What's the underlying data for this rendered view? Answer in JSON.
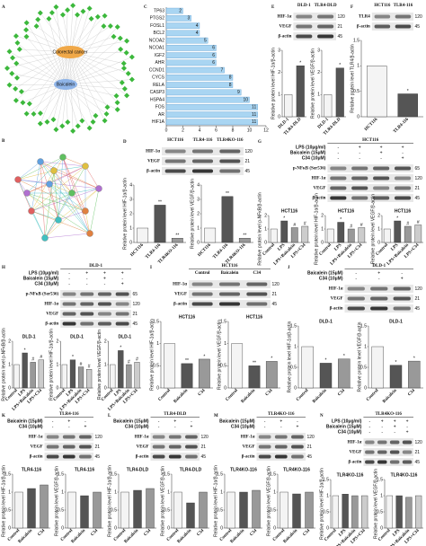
{
  "network_a": {
    "nodes": [
      "Colorectal cancer",
      "Baicalein"
    ]
  },
  "chart_data": {
    "type": "bar",
    "orientation": "horizontal",
    "letter": "C",
    "color": "#a9d5f2",
    "categories": [
      "TP63",
      "PTGS2",
      "FOSL1",
      "BCL2",
      "NCOA2",
      "NCOA1",
      "IGF2",
      "AHR",
      "CCND1",
      "CYCS",
      "RELA",
      "CASP3",
      "HSPA4",
      "FOS",
      "AR",
      "HIF1A"
    ],
    "values": [
      2,
      3,
      4,
      4,
      5,
      6,
      6,
      6,
      7,
      8,
      8,
      9,
      10,
      11,
      11,
      11
    ],
    "xlim": [
      0,
      12
    ],
    "xticks": [
      0,
      2,
      4,
      6,
      8,
      10,
      12
    ]
  },
  "panel_b": {
    "letter": "B"
  },
  "panel_a": {
    "letter": "A"
  },
  "blot_panels": [
    {
      "letter": "E",
      "lanes": [
        "DLD-1",
        "TLR4-DLD"
      ],
      "rows": [
        "HIF-1α",
        "VEGF",
        "β-actin"
      ],
      "kda": [
        "120",
        "21",
        "45"
      ],
      "categories": [
        "DLD-1",
        "TLR4-DLD"
      ],
      "ylim": [
        0,
        3
      ],
      "yticks": [
        0,
        1,
        2,
        3
      ],
      "charts": [
        {
          "ylabel": "Relative protein level HIF-1α/β-actin",
          "values": [
            1,
            2.3
          ],
          "sig": [
            null,
            "*"
          ]
        },
        {
          "ylabel": "Relative protein level VEGF/β-actin",
          "values": [
            1,
            2.2
          ],
          "sig": [
            null,
            "*"
          ]
        }
      ]
    },
    {
      "letter": "F",
      "lanes": [
        "HCT116",
        "TLR4-116"
      ],
      "rows": [
        "TLR4",
        "β-actin"
      ],
      "kda": [
        "120",
        "45"
      ],
      "categories": [
        "HCT116",
        "TLR4-116"
      ],
      "ylim": [
        0,
        1.5
      ],
      "yticks": [
        0,
        0.5,
        1,
        1.5
      ],
      "charts": [
        {
          "ylabel": "Relative protein level TLR4/β-actin",
          "values": [
            1,
            0.45
          ],
          "sig": [
            null,
            "*"
          ]
        }
      ]
    },
    {
      "letter": "D",
      "lanes": [
        "HCT116",
        "TLR4-116",
        "TLR4KO-116"
      ],
      "rows": [
        "HIF-1α",
        "VEGF",
        "β-actin"
      ],
      "kda": [
        "120",
        "21",
        "45"
      ],
      "categories": [
        "HCT116",
        "TLR4-116",
        "TLR4KO-116"
      ],
      "ylim": [
        0,
        4
      ],
      "yticks": [
        0,
        1,
        2,
        3,
        4
      ],
      "charts": [
        {
          "ylabel": "Relative protein level HIF-1α/β-actin",
          "values": [
            1,
            2.6,
            0.3
          ],
          "sig": [
            null,
            "**",
            "**"
          ]
        },
        {
          "ylabel": "Relative protein level VEGF/β-actin",
          "values": [
            1,
            3.2,
            0.3
          ],
          "sig": [
            null,
            "**",
            "**"
          ]
        }
      ]
    },
    {
      "letter": "G",
      "title": "HCT116",
      "treatments": [
        "LPS (10μg/ml)",
        "Baicalein (15μM)",
        "C34 (10μM)"
      ],
      "signs": [
        [
          "-",
          "+",
          "+",
          "+"
        ],
        [
          "-",
          "-",
          "+",
          "-"
        ],
        [
          "-",
          "-",
          "-",
          "+"
        ]
      ],
      "rows": [
        "p-NFκB (Ser536)",
        "HIF-1α",
        "VEGF",
        "β-actin"
      ],
      "kda": [
        "65",
        "120",
        "21",
        "45"
      ],
      "categories": [
        "Control",
        "LPS",
        "LPS+Baicalein",
        "LPS+C34"
      ],
      "ylim": [
        0,
        2
      ],
      "yticks": [
        0,
        1,
        2
      ],
      "charts": [
        {
          "title": "HCT116",
          "ylabel": "Relative protein level p-NFκB/β-actin",
          "values": [
            1,
            1.6,
            1.1,
            1.2
          ],
          "sig": [
            null,
            "*",
            "#",
            "#"
          ]
        },
        {
          "title": "HCT116",
          "ylabel": "Relative protein level HIF-1α/β-actin",
          "values": [
            1,
            1.5,
            1.0,
            1.1
          ],
          "sig": [
            null,
            "*",
            "#",
            "#"
          ]
        },
        {
          "title": "HCT116",
          "ylabel": "Relative protein level VEGF/β-actin",
          "values": [
            1,
            1.6,
            1.2,
            1.3
          ],
          "sig": [
            null,
            "*",
            "#",
            "#"
          ]
        }
      ]
    },
    {
      "letter": "H",
      "title": "DLD-1",
      "treatments": [
        "LPS (10μg/ml)",
        "Baicalein (15μM)",
        "C34 (10μM)"
      ],
      "signs": [
        [
          "-",
          "+",
          "+",
          "+"
        ],
        [
          "-",
          "-",
          "+",
          "-"
        ],
        [
          "-",
          "-",
          "-",
          "+"
        ]
      ],
      "rows": [
        "p-NFκB (Ser536)",
        "HIF-1α",
        "VEGF",
        "β-actin"
      ],
      "kda": [
        "65",
        "120",
        "21",
        "45"
      ],
      "categories": [
        "Control",
        "LPS",
        "LPS+Baicalein",
        "LPS+C34"
      ],
      "ylim": [
        0,
        2
      ],
      "yticks": [
        0,
        1,
        2
      ],
      "charts": [
        {
          "title": "DLD-1",
          "ylabel": "Relative protein level p-NFκB/β-actin",
          "values": [
            1,
            1.5,
            1.1,
            1.2
          ],
          "sig": [
            null,
            "*",
            "#",
            "#"
          ]
        },
        {
          "title": "DLD-1",
          "ylabel": "Relative protein level HIF-1α/β-actin",
          "values": [
            1,
            1.2,
            0.9,
            0.8
          ],
          "sig": [
            null,
            "*",
            "#",
            "#"
          ]
        },
        {
          "title": "DLD-1",
          "ylabel": "Relative protein level VEGF/β-actin",
          "values": [
            1,
            1.6,
            1.0,
            1.1
          ],
          "sig": [
            null,
            "*",
            "#",
            "#"
          ]
        }
      ]
    },
    {
      "letter": "I",
      "title": "HCT116",
      "lanes": [
        "Control",
        "Baicalein",
        "C34"
      ],
      "rows": [
        "HIF-1α",
        "VEGF",
        "β-actin"
      ],
      "kda": [
        "120",
        "21",
        "45"
      ],
      "categories": [
        "Control",
        "Baicalein",
        "C34"
      ],
      "ylim": [
        0,
        1.5
      ],
      "yticks": [
        0,
        0.5,
        1,
        1.5
      ],
      "charts": [
        {
          "title": "HCT116",
          "ylabel": "Relative protein level HIF-1α/β-actin",
          "values": [
            1,
            0.55,
            0.65
          ],
          "sig": [
            null,
            "**",
            "*"
          ]
        },
        {
          "title": "HCT116",
          "ylabel": "Relative protein level VEGF/β-actin",
          "values": [
            1,
            0.5,
            0.6
          ],
          "sig": [
            null,
            "**",
            "*"
          ]
        }
      ]
    },
    {
      "letter": "J",
      "title": "DLD-1",
      "treatments": [
        "Baicalein (15μM)",
        "C34 (10μM)"
      ],
      "signs": [
        [
          "-",
          "+",
          "-"
        ],
        [
          "-",
          "-",
          "+"
        ]
      ],
      "rows": [
        "HIF-1α",
        "VEGF",
        "β-actin"
      ],
      "kda": [
        "120",
        "21",
        "45"
      ],
      "categories": [
        "Control",
        "Baicalein",
        "C34"
      ],
      "ylim": [
        0,
        1.5
      ],
      "yticks": [
        0,
        0.5,
        1,
        1.5
      ],
      "charts": [
        {
          "title": "DLD-1",
          "ylabel": "Relative protein level HIF-1α/β-actin",
          "values": [
            1,
            0.6,
            0.7
          ],
          "sig": [
            null,
            "*",
            "*"
          ]
        },
        {
          "title": "DLD-1",
          "ylabel": "Relative protein level VEGF/β-actin",
          "values": [
            1,
            0.55,
            0.65
          ],
          "sig": [
            null,
            "*",
            "*"
          ]
        }
      ]
    },
    {
      "letter": "K",
      "title": "TLR4-116",
      "treatments": [
        "Baicalein (15μM)",
        "C34 (10μM)"
      ],
      "signs": [
        [
          "-",
          "+",
          "-"
        ],
        [
          "-",
          "-",
          "+"
        ]
      ],
      "rows": [
        "HIF-1α",
        "VEGF",
        "β-actin"
      ],
      "kda": [
        "120",
        "21",
        "45"
      ],
      "categories": [
        "Control",
        "Baicalein",
        "C34"
      ],
      "ylim": [
        0,
        1.5
      ],
      "yticks": [
        0,
        0.5,
        1,
        1.5
      ],
      "charts": [
        {
          "title": "TLR4-116",
          "ylabel": "Relative protein level HIF-1α/β-actin",
          "values": [
            1,
            1.1,
            1.2
          ],
          "sig": [
            null,
            null,
            null
          ]
        },
        {
          "title": "TLR4-116",
          "ylabel": "Relative protein level VEGF/β-actin",
          "values": [
            1,
            0.9,
            1.0
          ],
          "sig": [
            null,
            null,
            null
          ]
        }
      ]
    },
    {
      "letter": "L",
      "title": "TLR4-DLD",
      "treatments": [
        "Baicalein (15μM)",
        "C34 (10μM)"
      ],
      "signs": [
        [
          "-",
          "+",
          "-"
        ],
        [
          "-",
          "-",
          "+"
        ]
      ],
      "rows": [
        "HIF-1α",
        "VEGF",
        "β-actin"
      ],
      "kda": [
        "120",
        "21",
        "45"
      ],
      "categories": [
        "Control",
        "Baicalein",
        "C34"
      ],
      "ylim": [
        0,
        1.5
      ],
      "yticks": [
        0,
        0.5,
        1,
        1.5
      ],
      "charts": [
        {
          "title": "TLR4-DLD",
          "ylabel": "Relative protein level HIF-1α/β-actin",
          "values": [
            1,
            1.05,
            1.1
          ],
          "sig": [
            null,
            null,
            null
          ]
        },
        {
          "title": "TLR4-DLD",
          "ylabel": "Relative protein level VEGF/β-actin",
          "values": [
            1,
            0.7,
            1.0
          ],
          "sig": [
            null,
            null,
            null
          ]
        }
      ]
    },
    {
      "letter": "M",
      "title": "TLR4KO-116",
      "treatments": [
        "Baicalein (15μM)",
        "C34 (10μM)"
      ],
      "signs": [
        [
          "-",
          "+",
          "-"
        ],
        [
          "-",
          "-",
          "+"
        ]
      ],
      "rows": [
        "HIF-1α",
        "VEGF",
        "β-actin"
      ],
      "kda": [
        "120",
        "21",
        "45"
      ],
      "categories": [
        "Control",
        "Baicalein",
        "C34"
      ],
      "ylim": [
        0,
        1.5
      ],
      "yticks": [
        0,
        0.5,
        1,
        1.5
      ],
      "charts": [
        {
          "title": "TLR4KO-116",
          "ylabel": "Relative protein level HIF-1α/β-actin",
          "values": [
            1,
            1.0,
            1.05
          ],
          "sig": [
            null,
            null,
            null
          ]
        },
        {
          "title": "TLR4KO-116",
          "ylabel": "Relative protein level VEGF/β-actin",
          "values": [
            1,
            0.95,
            1.0
          ],
          "sig": [
            null,
            null,
            null
          ]
        }
      ]
    },
    {
      "letter": "N",
      "title": "TLR4KO-116",
      "treatments": [
        "LPS (10μg/ml)",
        "Baicalein (15μM)",
        "C34 (10μM)"
      ],
      "signs": [
        [
          "-",
          "+",
          "+",
          "+"
        ],
        [
          "-",
          "-",
          "+",
          "-"
        ],
        [
          "-",
          "-",
          "-",
          "+"
        ]
      ],
      "rows": [
        "HIF-1α",
        "VEGF",
        "β-actin"
      ],
      "kda": [
        "120",
        "21",
        "45"
      ],
      "categories": [
        "Control",
        "LPS",
        "LPS+Baicalein",
        "LPS+C34"
      ],
      "ylim": [
        0,
        1.5
      ],
      "yticks": [
        0,
        0.5,
        1,
        1.5
      ],
      "charts": [
        {
          "title": "TLR4KO-116",
          "ylabel": "Relative protein level HIF-1α/β-actin",
          "values": [
            1,
            1.05,
            1.0,
            1.0
          ],
          "sig": [
            null,
            null,
            null,
            null
          ]
        },
        {
          "title": "TLR4KO-116",
          "ylabel": "Relative protein level VEGF/β-actin",
          "values": [
            1,
            1.0,
            0.95,
            1.0
          ],
          "sig": [
            null,
            null,
            null,
            null
          ]
        }
      ]
    }
  ]
}
